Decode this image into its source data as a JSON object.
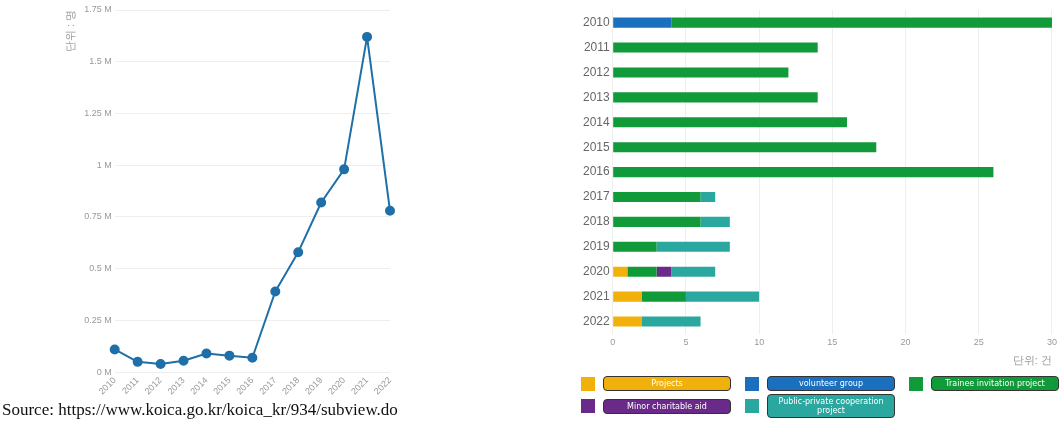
{
  "chart_data": [
    {
      "type": "line",
      "ylabel": "단위 : 명",
      "categories": [
        "2010",
        "2011",
        "2012",
        "2013",
        "2014",
        "2015",
        "2016",
        "2017",
        "2018",
        "2019",
        "2020",
        "2021",
        "2022"
      ],
      "series": [
        {
          "color": "#1f6fa8",
          "values": [
            0.11,
            0.05,
            0.04,
            0.055,
            0.09,
            0.08,
            0.07,
            0.39,
            0.58,
            0.82,
            0.98,
            1.62,
            0.78
          ]
        }
      ],
      "ylim": [
        0,
        1.75
      ],
      "yticks": [
        {
          "value": 0,
          "label": "0 M"
        },
        {
          "value": 0.25,
          "label": "0.25 M"
        },
        {
          "value": 0.5,
          "label": "0.5 M"
        },
        {
          "value": 0.75,
          "label": "0.75 M"
        },
        {
          "value": 1,
          "label": "1 M"
        },
        {
          "value": 1.25,
          "label": "1.25 M"
        },
        {
          "value": 1.5,
          "label": "1.5 M"
        },
        {
          "value": 1.75,
          "label": "1.75 M"
        }
      ],
      "grid": "y",
      "marker": "circle",
      "annotations": [
        "Source: https://www.koica.go.kr/koica_kr/934/subview.do"
      ]
    },
    {
      "type": "bar",
      "orientation": "horizontal",
      "stacked": true,
      "xlabel": "단위: 건",
      "categories": [
        "2010",
        "2011",
        "2012",
        "2013",
        "2014",
        "2015",
        "2016",
        "2017",
        "2018",
        "2019",
        "2020",
        "2021",
        "2022"
      ],
      "series": [
        {
          "name": "Projects",
          "color": "#f2b10a",
          "values": [
            0,
            0,
            0,
            0,
            0,
            0,
            0,
            0,
            0,
            0,
            1,
            2,
            2
          ]
        },
        {
          "name": "volunteer group",
          "color": "#1a6fbf",
          "values": [
            4,
            0,
            0,
            0,
            0,
            0,
            0,
            0,
            0,
            0,
            0,
            0,
            0
          ]
        },
        {
          "name": "Trainee invitation project",
          "color": "#109a3a",
          "values": [
            26,
            14,
            12,
            14,
            16,
            18,
            26,
            6,
            6,
            3,
            2,
            3,
            0
          ]
        },
        {
          "name": "Minor charitable aid",
          "color": "#6a2a8a",
          "values": [
            0,
            0,
            0,
            0,
            0,
            0,
            0,
            0,
            0,
            0,
            1,
            0,
            0
          ]
        },
        {
          "name": "Public-private cooperation project",
          "color": "#2aa8a0",
          "values": [
            0,
            0,
            0,
            0,
            0,
            0,
            0,
            1,
            2,
            5,
            3,
            5,
            4
          ]
        }
      ],
      "xlim": [
        0,
        30
      ],
      "xticks": [
        0,
        5,
        10,
        15,
        20,
        25,
        30
      ],
      "grid": "x",
      "legend": "bottom"
    }
  ]
}
